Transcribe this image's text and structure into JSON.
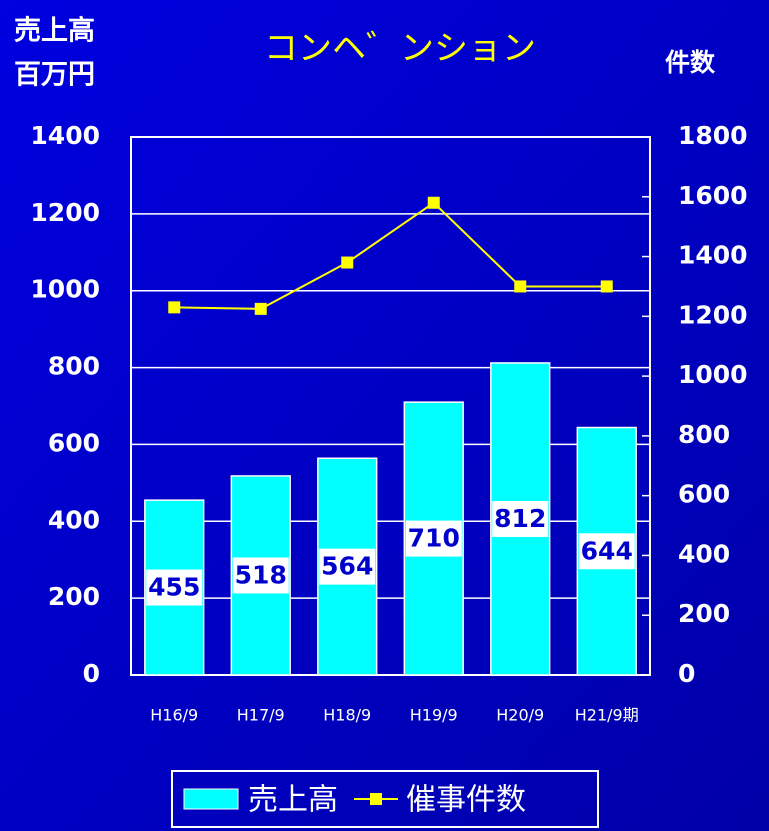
{
  "chart_data": {
    "type": "bar",
    "title": "コンヘ゛ンション",
    "ylabel": [
      "売上高",
      "百万円"
    ],
    "y2label": "件数",
    "categories": [
      "H16/9",
      "H17/9",
      "H18/9",
      "H19/9",
      "H20/9",
      "H21/9期"
    ],
    "series": [
      {
        "name": "売上高",
        "type": "bar",
        "color": "#00ffff",
        "values": [
          455,
          518,
          564,
          710,
          812,
          644
        ]
      },
      {
        "name": "催事件数",
        "type": "line",
        "axis": "y2",
        "color": "#ffff00",
        "values": [
          1230,
          1225,
          1380,
          1580,
          1300,
          1300
        ]
      }
    ],
    "ylim": [
      0,
      1400
    ],
    "yticks": [
      0,
      200,
      400,
      600,
      800,
      1000,
      1200,
      1400
    ],
    "y2lim": [
      0,
      1800
    ],
    "y2ticks": [
      0,
      200,
      400,
      600,
      800,
      1000,
      1200,
      1400,
      1600,
      1800
    ],
    "grid": true,
    "legend": "bottom"
  }
}
